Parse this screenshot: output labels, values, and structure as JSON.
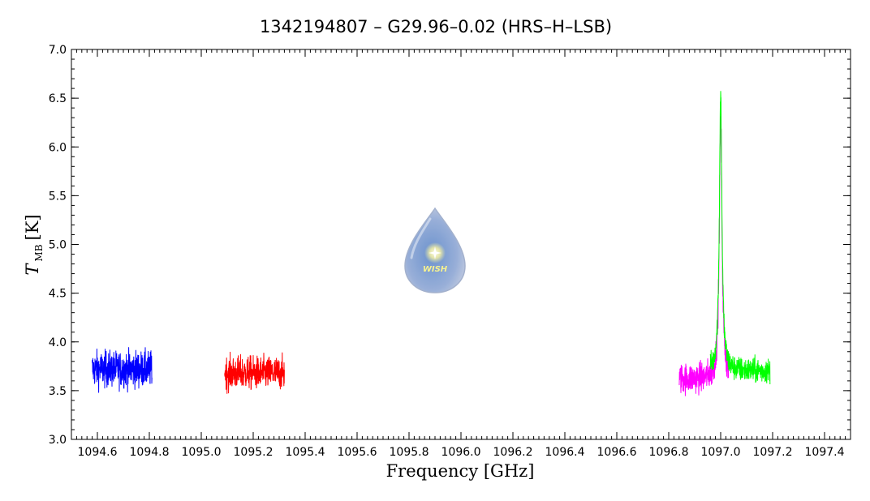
{
  "chart_data": {
    "type": "line",
    "title": "1342194807 – G29.96–0.02 (HRS–H–LSB)",
    "xlabel": "Frequency [GHz]",
    "ylabel_symbol": "T",
    "ylabel_subscript": "MB",
    "ylabel_unit": "[K]",
    "xlim": [
      1094.5,
      1097.5
    ],
    "ylim": [
      3.0,
      7.0
    ],
    "x_ticks": [
      1094.6,
      1094.8,
      1095.0,
      1095.2,
      1095.4,
      1095.6,
      1095.8,
      1096.0,
      1096.2,
      1096.4,
      1096.6,
      1096.8,
      1097.0,
      1097.2,
      1097.4
    ],
    "x_tick_labels": [
      "1094.6",
      "1094.8",
      "1095.0",
      "1095.2",
      "1095.4",
      "1095.6",
      "1095.8",
      "1096.0",
      "1096.2",
      "1096.4",
      "1096.6",
      "1096.8",
      "1097.0",
      "1097.2",
      "1097.4"
    ],
    "y_ticks": [
      3.0,
      3.5,
      4.0,
      4.5,
      5.0,
      5.5,
      6.0,
      6.5,
      7.0
    ],
    "y_tick_labels": [
      "3.0",
      "3.5",
      "4.0",
      "4.5",
      "5.0",
      "5.5",
      "6.0",
      "6.5",
      "7.0"
    ],
    "grid": false,
    "legend": "none",
    "series": [
      {
        "color": "#0000ff",
        "x_range": [
          1094.58,
          1094.81
        ],
        "baseline": 3.72,
        "noise": 0.13,
        "line_center": null
      },
      {
        "color": "#ff0000",
        "x_range": [
          1095.09,
          1095.32
        ],
        "baseline": 3.68,
        "noise": 0.12,
        "line_center": null
      },
      {
        "color": "#ff00ff",
        "x_range": [
          1096.84,
          1097.03
        ],
        "baseline": 3.62,
        "noise": 0.11,
        "line_center": 1097.0,
        "line_peak": 6.3,
        "line_width": 0.006
      },
      {
        "color": "#00ff00",
        "x_range": [
          1096.96,
          1097.19
        ],
        "baseline": 3.7,
        "noise": 0.09,
        "line_center": 1097.0,
        "line_peak": 6.55,
        "line_width": 0.006
      }
    ]
  },
  "logo": {
    "text": "WISH"
  }
}
